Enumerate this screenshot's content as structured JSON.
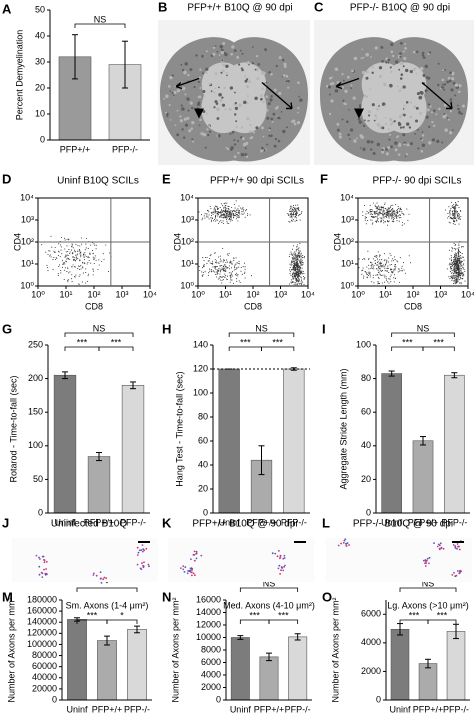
{
  "chart_data": [
    {
      "panel": "A",
      "type": "bar",
      "ylabel": "Percent Demyelination",
      "categories": [
        "PFP+/+",
        "PFP-/-"
      ],
      "values": [
        32,
        29
      ],
      "errors": [
        8.5,
        9
      ],
      "colors": [
        "#9a9a9a",
        "#d6d6d6"
      ],
      "ylim": [
        0,
        50
      ],
      "yticks": [
        0,
        10,
        20,
        30,
        40,
        50
      ],
      "brackets": [
        {
          "from": 0,
          "to": 1,
          "label": "NS"
        }
      ]
    },
    {
      "panel": "D",
      "type": "scatter",
      "title": "Uninf B10Q SCILs",
      "xlabel": "CD8",
      "ylabel": "CD4",
      "log_scale": true,
      "xlim": [
        1,
        10000
      ],
      "ylim": [
        1,
        10000
      ],
      "xticks": [
        {
          "value": 1,
          "label": "10⁰"
        },
        {
          "value": 10,
          "label": "10¹"
        },
        {
          "value": 100,
          "label": "10²"
        },
        {
          "value": 1000,
          "label": "10³"
        },
        {
          "value": 10000,
          "label": "10⁴"
        }
      ],
      "yticks": [
        {
          "value": 1,
          "label": "10⁰"
        },
        {
          "value": 10,
          "label": "10¹"
        },
        {
          "value": 100,
          "label": "10²"
        },
        {
          "value": 1000,
          "label": "10³"
        },
        {
          "value": 10000,
          "label": "10⁴"
        }
      ],
      "quadrant": [
        400,
        100
      ]
    },
    {
      "panel": "E",
      "type": "scatter",
      "title": "PFP+/+ 90 dpi SCILs",
      "xlabel": "CD8",
      "ylabel": "CD4",
      "log_scale": true,
      "xlim": [
        1,
        10000
      ],
      "ylim": [
        1,
        10000
      ],
      "xticks": [
        {
          "value": 1,
          "label": "10⁰"
        },
        {
          "value": 10,
          "label": "10¹"
        },
        {
          "value": 100,
          "label": "10²"
        },
        {
          "value": 1000,
          "label": "10³"
        },
        {
          "value": 10000,
          "label": "10⁴"
        }
      ],
      "yticks": [
        {
          "value": 1,
          "label": "10⁰"
        },
        {
          "value": 10,
          "label": "10¹"
        },
        {
          "value": 100,
          "label": "10²"
        },
        {
          "value": 1000,
          "label": "10³"
        },
        {
          "value": 10000,
          "label": "10⁴"
        }
      ],
      "quadrant": [
        400,
        100
      ]
    },
    {
      "panel": "F",
      "type": "scatter",
      "title": "PFP-/- 90 dpi SCILs",
      "xlabel": "CD8",
      "ylabel": "CD4",
      "log_scale": true,
      "xlim": [
        1,
        10000
      ],
      "ylim": [
        1,
        10000
      ],
      "xticks": [
        {
          "value": 1,
          "label": "10⁰"
        },
        {
          "value": 10,
          "label": "10¹"
        },
        {
          "value": 100,
          "label": "10²"
        },
        {
          "value": 1000,
          "label": "10³"
        },
        {
          "value": 10000,
          "label": "10⁴"
        }
      ],
      "yticks": [
        {
          "value": 1,
          "label": "10⁰"
        },
        {
          "value": 10,
          "label": "10¹"
        },
        {
          "value": 100,
          "label": "10²"
        },
        {
          "value": 1000,
          "label": "10³"
        },
        {
          "value": 10000,
          "label": "10⁴"
        }
      ],
      "quadrant": [
        400,
        100
      ]
    },
    {
      "panel": "G",
      "type": "bar",
      "ylabel": "Rotarod - Time-to-fall (sec)",
      "categories": [
        "Uninf",
        "PFP+/+",
        "PFP-/-"
      ],
      "values": [
        205,
        84,
        190
      ],
      "errors": [
        5,
        6,
        5
      ],
      "colors": [
        "#7c7c7c",
        "#ababab",
        "#d9d9d9"
      ],
      "ylim": [
        0,
        250
      ],
      "yticks": [
        0,
        50,
        100,
        150,
        200,
        250
      ],
      "brackets": [
        {
          "from": 0,
          "to": 1,
          "label": "***"
        },
        {
          "from": 1,
          "to": 2,
          "label": "***"
        },
        {
          "from": 0,
          "to": 2,
          "label": "NS"
        }
      ]
    },
    {
      "panel": "H",
      "type": "bar",
      "ylabel": "Hang Test - Time-to-fall (sec)",
      "categories": [
        "Uninf",
        "PFP+/+",
        "PFP-/-"
      ],
      "values": [
        120,
        44,
        120
      ],
      "errors": [
        0,
        12,
        1
      ],
      "colors": [
        "#7c7c7c",
        "#ababab",
        "#d9d9d9"
      ],
      "ylim": [
        0,
        140
      ],
      "yticks": [
        0,
        20,
        40,
        60,
        80,
        100,
        120,
        140
      ],
      "reference_line": 120,
      "brackets": [
        {
          "from": 0,
          "to": 1,
          "label": "***"
        },
        {
          "from": 1,
          "to": 2,
          "label": "***"
        },
        {
          "from": 0,
          "to": 2,
          "label": "NS"
        }
      ]
    },
    {
      "panel": "I",
      "type": "bar",
      "ylabel": "Aggregate Stride Length (mm)",
      "categories": [
        "Uninf",
        "PFP+/+",
        "PFP-/-"
      ],
      "values": [
        83,
        43,
        82
      ],
      "errors": [
        1.5,
        2.5,
        1.5
      ],
      "colors": [
        "#7c7c7c",
        "#ababab",
        "#d9d9d9"
      ],
      "ylim": [
        0,
        100
      ],
      "yticks": [
        0,
        20,
        40,
        60,
        80,
        100
      ],
      "brackets": [
        {
          "from": 0,
          "to": 1,
          "label": "***"
        },
        {
          "from": 1,
          "to": 2,
          "label": "***"
        },
        {
          "from": 0,
          "to": 2,
          "label": "NS"
        }
      ]
    },
    {
      "panel": "M",
      "type": "bar",
      "title": "Sm. Axons (1-4 μm²)",
      "ylabel": "Number of Axons per mm²",
      "categories": [
        "Uninf",
        "PFP+/+",
        "PFP-/-"
      ],
      "values": [
        145000,
        107000,
        127000
      ],
      "errors": [
        3000,
        8000,
        6000
      ],
      "colors": [
        "#7c7c7c",
        "#ababab",
        "#d9d9d9"
      ],
      "ylim": [
        0,
        180000
      ],
      "yticks": [
        0,
        20000,
        40000,
        60000,
        80000,
        100000,
        120000,
        140000,
        160000,
        180000
      ],
      "brackets": [
        {
          "from": 0,
          "to": 1,
          "label": "***"
        },
        {
          "from": 1,
          "to": 2,
          "label": "*"
        },
        {
          "from": 0,
          "to": 2,
          "label": "*"
        }
      ]
    },
    {
      "panel": "N",
      "type": "bar",
      "title": "Med. Axons (4-10 μm²)",
      "ylabel": "Number of Axons per mm²",
      "categories": [
        "Uninf",
        "PFP+/+",
        "PFP-/-"
      ],
      "values": [
        10000,
        6900,
        10100
      ],
      "errors": [
        300,
        600,
        500
      ],
      "colors": [
        "#7c7c7c",
        "#ababab",
        "#d9d9d9"
      ],
      "ylim": [
        0,
        16000
      ],
      "yticks": [
        0,
        2000,
        4000,
        6000,
        8000,
        10000,
        12000,
        14000,
        16000
      ],
      "brackets": [
        {
          "from": 0,
          "to": 1,
          "label": "***"
        },
        {
          "from": 1,
          "to": 2,
          "label": "***"
        },
        {
          "from": 0,
          "to": 2,
          "label": "NS"
        }
      ]
    },
    {
      "panel": "O",
      "type": "bar",
      "title": "Lg. Axons (>10 μm²)",
      "ylabel": "Number of Axons per mm²",
      "categories": [
        "Uninf",
        "PFP+/+",
        "PFP-/-"
      ],
      "values": [
        4950,
        2550,
        4800
      ],
      "errors": [
        400,
        300,
        500
      ],
      "colors": [
        "#7c7c7c",
        "#ababab",
        "#d9d9d9"
      ],
      "ylim": [
        0,
        7000
      ],
      "yticks": [
        0,
        2000,
        4000,
        6000
      ],
      "brackets": [
        {
          "from": 0,
          "to": 1,
          "label": "***"
        },
        {
          "from": 1,
          "to": 2,
          "label": "***"
        },
        {
          "from": 0,
          "to": 2,
          "label": "NS"
        }
      ]
    }
  ],
  "images": [
    {
      "panel": "B",
      "title": "PFP+/+ B10Q @ 90 dpi"
    },
    {
      "panel": "C",
      "title": "PFP-/- B10Q @ 90 dpi"
    },
    {
      "panel": "J",
      "title": "Uninfected B10Q"
    },
    {
      "panel": "K",
      "title": "PFP+/+ B10Q @ 90 dpi"
    },
    {
      "panel": "L",
      "title": "PFP-/- B10Q @ 90 dpi"
    }
  ]
}
